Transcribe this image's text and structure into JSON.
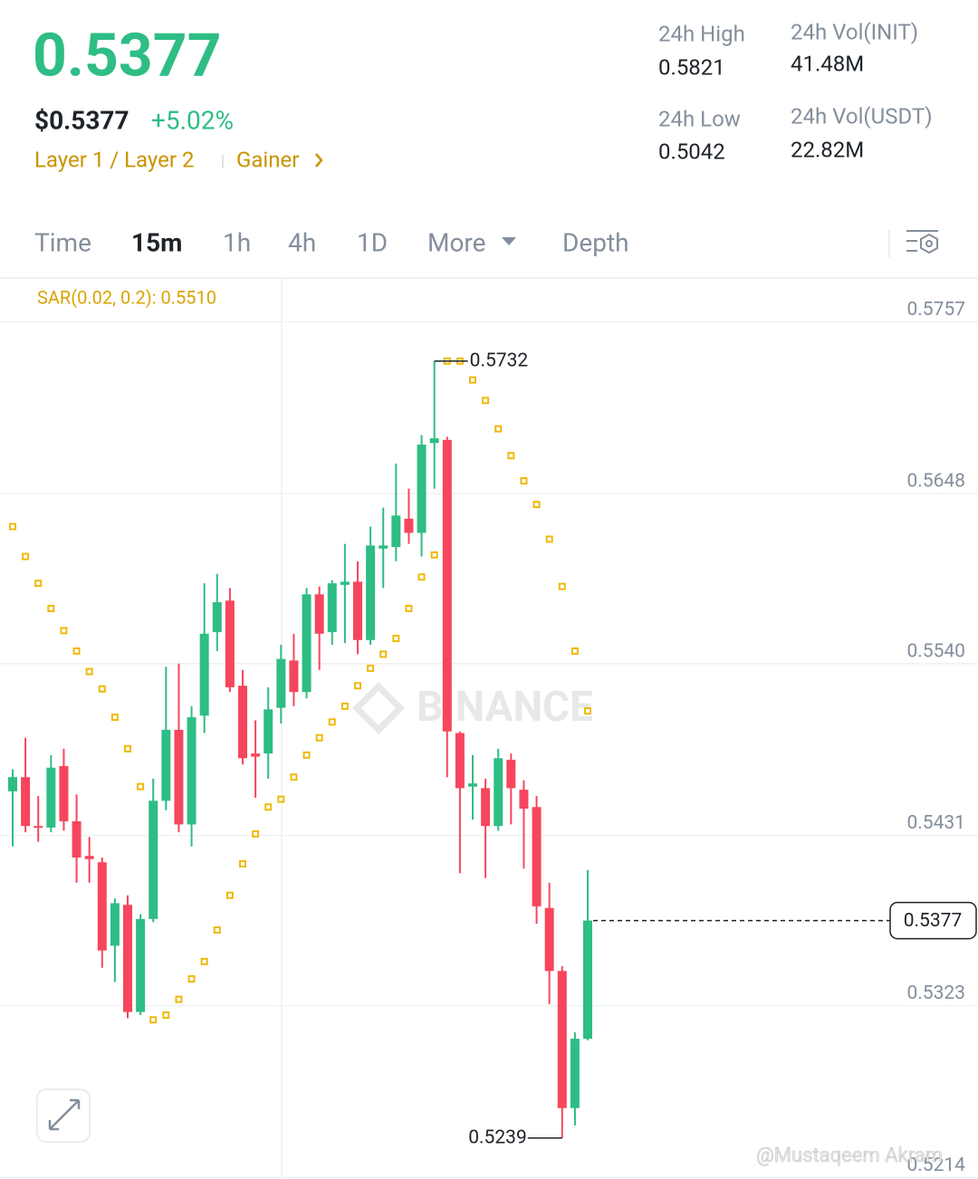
{
  "header": {
    "price": "0.5377",
    "usd_price": "$0.5377",
    "change": "+5.02%",
    "tags": [
      "Layer 1 / Layer 2",
      "Gainer"
    ],
    "stats": [
      {
        "label": "24h High",
        "value": "0.5821"
      },
      {
        "label": "24h Vol(INIT)",
        "value": "41.48M"
      },
      {
        "label": "24h Low",
        "value": "0.5042"
      },
      {
        "label": "24h Vol(USDT)",
        "value": "22.82M"
      }
    ]
  },
  "tabs": [
    "Time",
    "15m",
    "1h",
    "4h",
    "1D",
    "More",
    "Depth"
  ],
  "chart_data": {
    "type": "candlestick",
    "indicator_label": "SAR(0.02, 0.2): 0.5510",
    "watermark": "BINANCE",
    "credit": "@Mustaqeem Akram",
    "ylim": [
      0.5213,
      0.5783
    ],
    "yticks": [
      0.5757,
      0.5648,
      {
        "value": 0.554,
        "label": "0.5540"
      },
      0.5431,
      0.5323,
      0.5214
    ],
    "grid": true,
    "up_color": "#2ebd85",
    "down_color": "#f6465d",
    "open": [
      0.5459,
      0.5468,
      0.5437,
      0.5436,
      0.5475,
      0.544,
      0.5418,
      0.5414,
      0.5361,
      0.5387,
      0.5319,
      0.5378,
      0.5453,
      0.5498,
      0.5438,
      0.5507,
      0.556,
      0.558,
      0.5526,
      0.5483,
      0.5483,
      0.5512,
      0.5542,
      0.5522,
      0.5584,
      0.556,
      0.559,
      0.5592,
      0.5555,
      0.5613,
      0.5614,
      0.5632,
      0.5623,
      0.568,
      0.5682,
      0.5496,
      0.5462,
      0.5461,
      0.5437,
      0.5479,
      0.546,
      0.5449,
      0.5385,
      0.5345,
      0.5258,
      0.5302
    ],
    "high": [
      0.5473,
      0.5493,
      0.5456,
      0.5482,
      0.5486,
      0.5457,
      0.543,
      0.5417,
      0.5391,
      0.5393,
      0.5381,
      0.5467,
      0.5538,
      0.554,
      0.5513,
      0.5591,
      0.5597,
      0.5588,
      0.5536,
      0.5504,
      0.5525,
      0.5552,
      0.5559,
      0.5588,
      0.5589,
      0.5593,
      0.5616,
      0.5605,
      0.5627,
      0.5639,
      0.5667,
      0.5651,
      0.5685,
      0.5732,
      0.5684,
      0.5497,
      0.5482,
      0.5467,
      0.5486,
      0.5483,
      0.5466,
      0.5456,
      0.5401,
      0.5348,
      0.5306,
      0.5409
    ],
    "low": [
      0.5424,
      0.5433,
      0.5427,
      0.5433,
      0.5434,
      0.5401,
      0.5401,
      0.5347,
      0.5338,
      0.5315,
      0.5317,
      0.5376,
      0.5447,
      0.5433,
      0.5424,
      0.5496,
      0.5548,
      0.5522,
      0.5476,
      0.5455,
      0.5467,
      0.5502,
      0.5513,
      0.5518,
      0.5536,
      0.5552,
      0.5553,
      0.5546,
      0.5552,
      0.5588,
      0.5605,
      0.5616,
      0.5608,
      0.5651,
      0.5468,
      0.5407,
      0.5441,
      0.5404,
      0.5434,
      0.5438,
      0.541,
      0.5375,
      0.5324,
      0.5239,
      0.5247,
      0.5301
    ],
    "close": [
      0.5468,
      0.5437,
      0.5436,
      0.5474,
      0.544,
      0.5417,
      0.5416,
      0.5358,
      0.5388,
      0.5319,
      0.5378,
      0.5453,
      0.5498,
      0.5438,
      0.5506,
      0.5559,
      0.5579,
      0.5525,
      0.548,
      0.5481,
      0.5511,
      0.5543,
      0.5522,
      0.5584,
      0.5559,
      0.5591,
      0.5592,
      0.5555,
      0.5615,
      0.5615,
      0.5634,
      0.5623,
      0.5679,
      0.5683,
      0.5497,
      0.5461,
      0.5464,
      0.5437,
      0.548,
      0.5461,
      0.5448,
      0.5386,
      0.5345,
      0.5258,
      0.5302,
      0.5377
    ],
    "sar": {
      "color": "#f0b90b",
      "values": [
        0.5627,
        0.5608,
        0.5591,
        0.5575,
        0.5561,
        0.5548,
        0.5535,
        0.5524,
        0.5506,
        0.5486,
        0.5462,
        0.5314,
        0.5317,
        0.5327,
        0.534,
        0.5351,
        0.5371,
        0.5393,
        0.5413,
        0.5432,
        0.5449,
        0.5454,
        0.5468,
        0.5482,
        0.5493,
        0.5503,
        0.5513,
        0.5526,
        0.5537,
        0.5546,
        0.5556,
        0.5575,
        0.5595,
        0.5609,
        0.5732,
        0.5732,
        0.572,
        0.5707,
        0.5689,
        0.5672,
        0.5656,
        0.5641,
        0.5619,
        0.5589,
        0.5548,
        0.551
      ]
    }
  }
}
